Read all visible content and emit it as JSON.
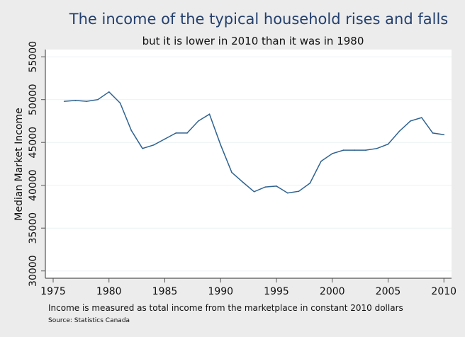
{
  "chart_data": {
    "type": "line",
    "title": "The income of the typical household rises and falls",
    "subtitle": "but it is lower in 2010 than it was in 1980",
    "xlabel": "",
    "ylabel": "Median Market Income",
    "note": "Income is measured as total income from the marketplace in constant 2010 dollars",
    "source": "Source: Statistics Canada",
    "xlim": [
      1975,
      2010
    ],
    "ylim": [
      30000,
      55000
    ],
    "x_ticks": [
      "1975",
      "1980",
      "1985",
      "1990",
      "1995",
      "2000",
      "2005",
      "2010"
    ],
    "y_ticks": [
      "30000",
      "35000",
      "40000",
      "45000",
      "50000",
      "55000"
    ],
    "grid": true,
    "colors": {
      "line": "#2e6290",
      "title": "#24406e",
      "background": "#ececec",
      "plot": "#ffffff",
      "grid": "#eaf2f3"
    },
    "x": [
      1976,
      1977,
      1978,
      1979,
      1980,
      1981,
      1982,
      1983,
      1984,
      1985,
      1986,
      1987,
      1988,
      1989,
      1990,
      1991,
      1992,
      1993,
      1994,
      1995,
      1996,
      1997,
      1998,
      1999,
      2000,
      2001,
      2002,
      2003,
      2004,
      2005,
      2006,
      2007,
      2008,
      2009,
      2010
    ],
    "values": [
      49800,
      49900,
      49800,
      50000,
      50900,
      49600,
      46400,
      44300,
      44700,
      45400,
      46100,
      46100,
      47500,
      48300,
      44700,
      41500,
      40350,
      39250,
      39800,
      39900,
      39100,
      39300,
      40250,
      42800,
      43700,
      44100,
      44100,
      44100,
      44300,
      44800,
      46300,
      47500,
      47900,
      46100,
      45900
    ]
  }
}
